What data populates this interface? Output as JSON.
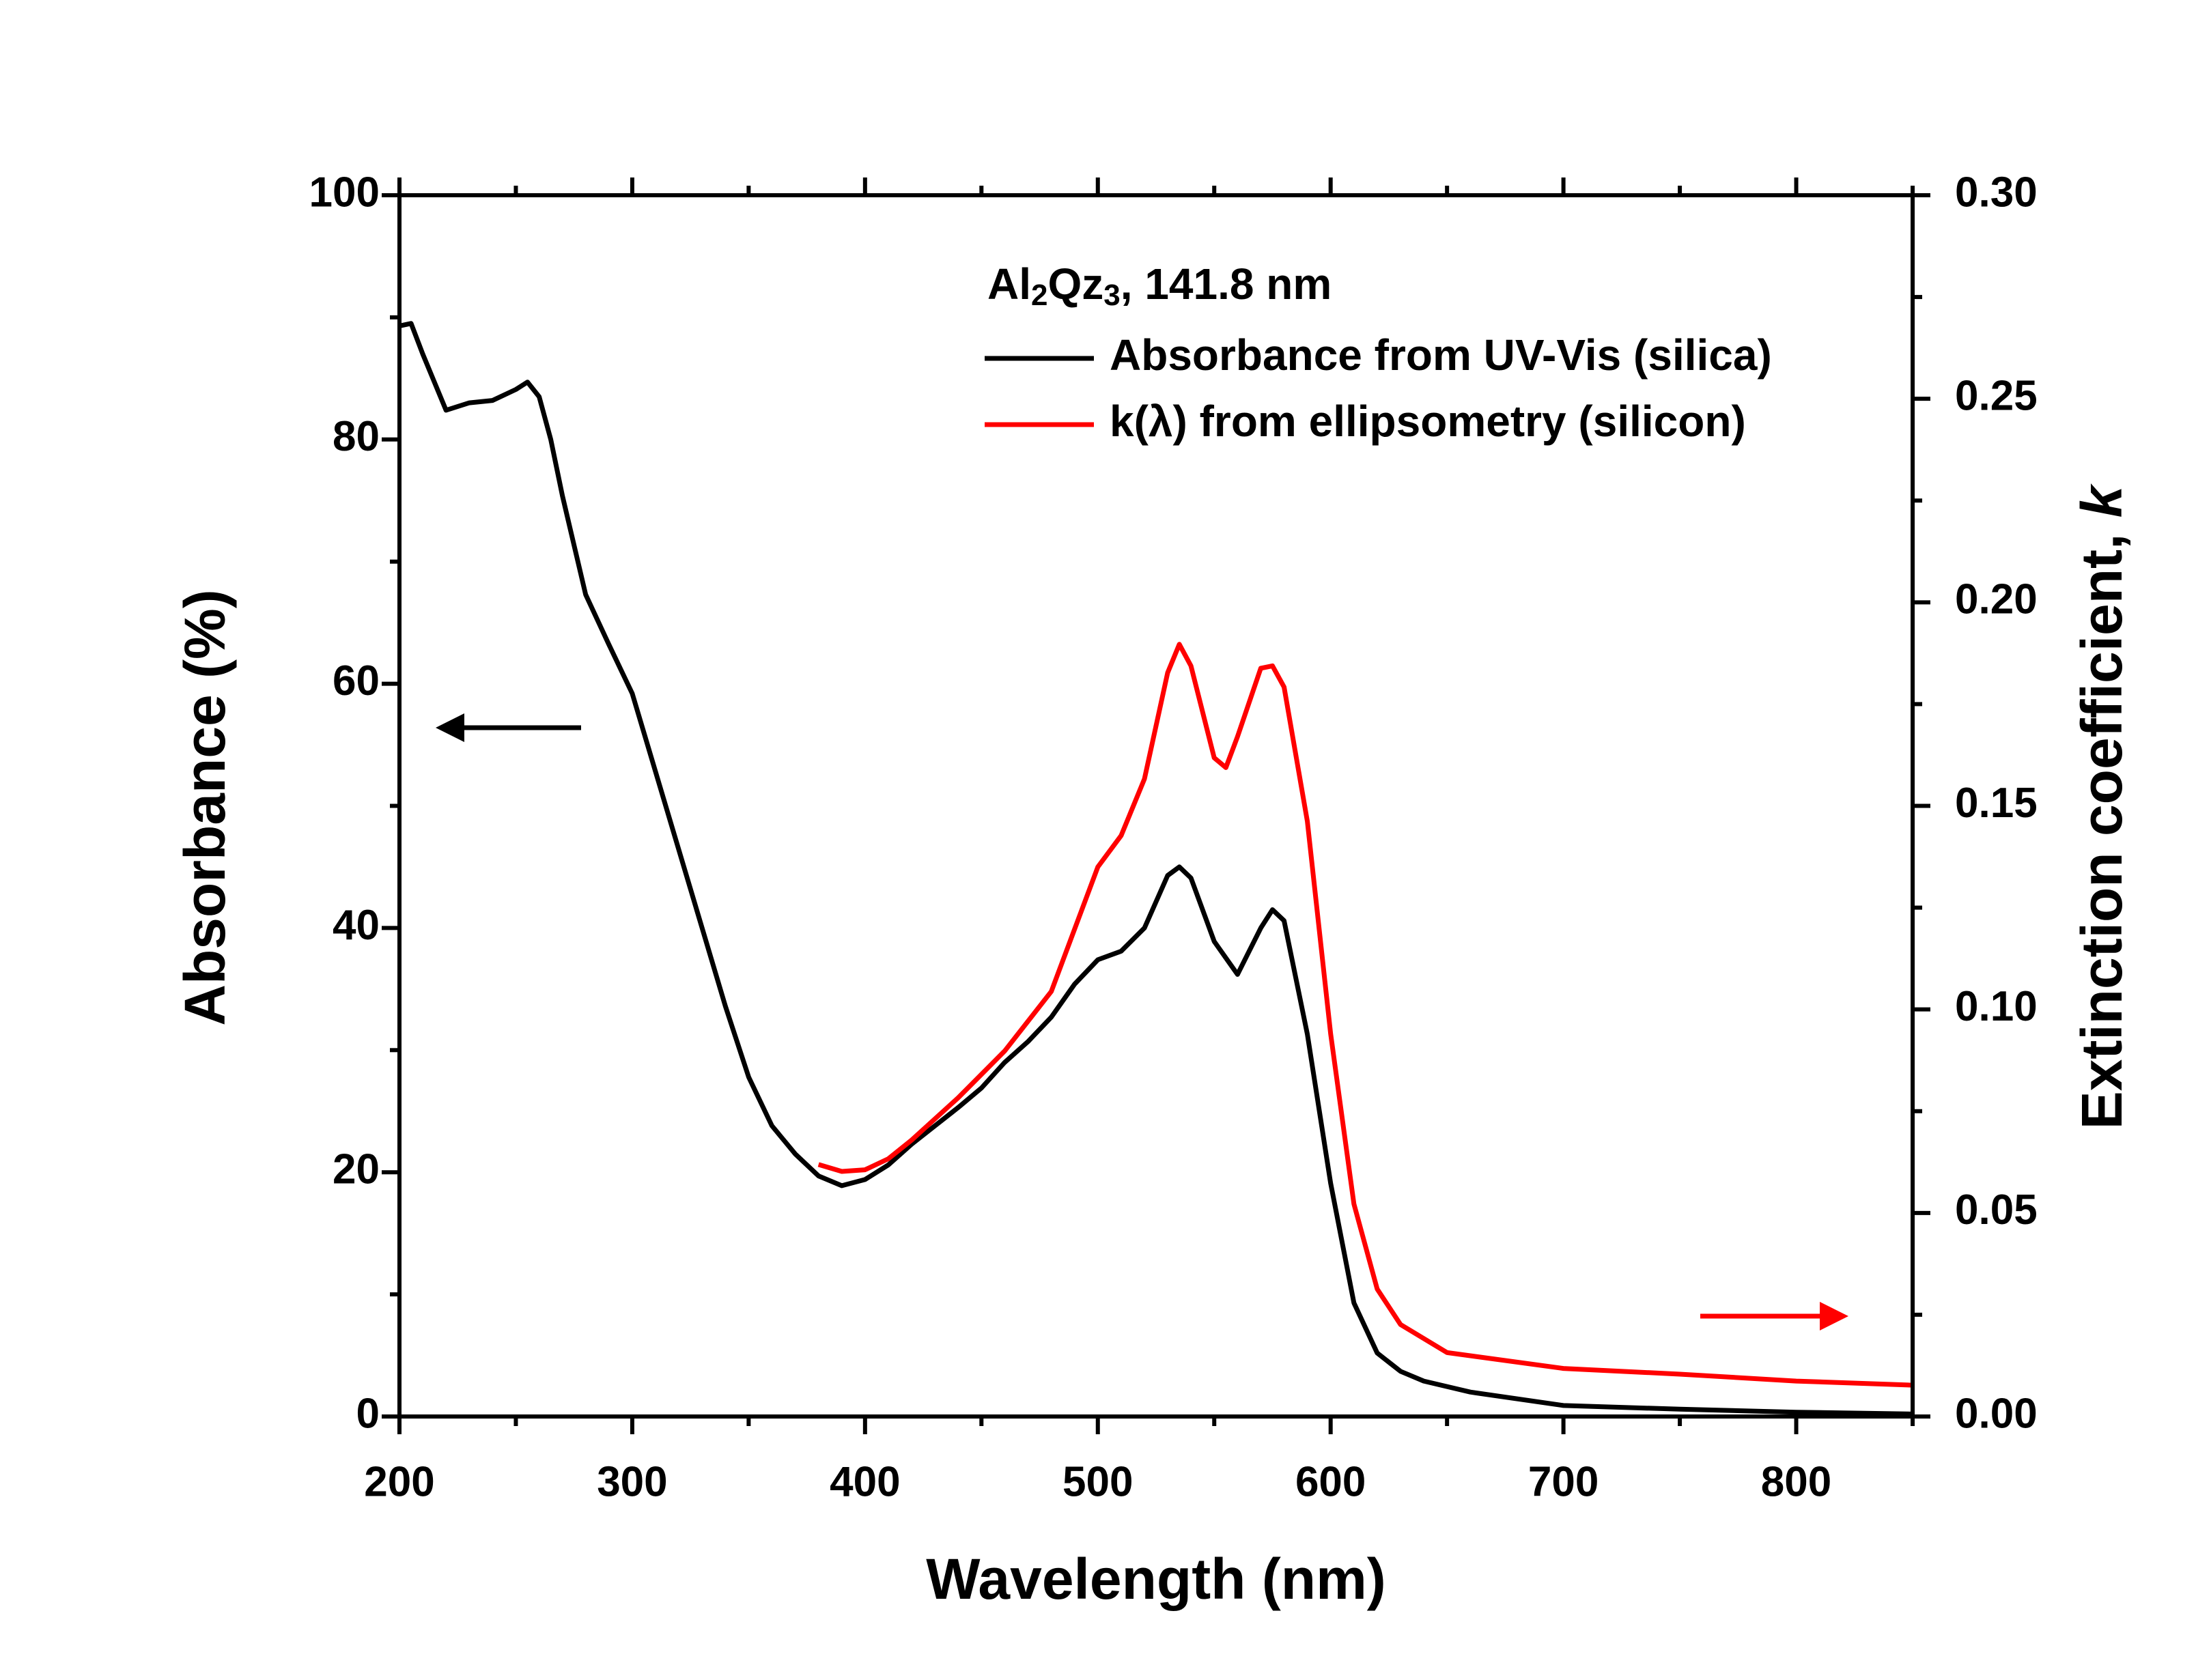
{
  "chart_data": {
    "type": "line",
    "xlabel": "Wavelength (nm)",
    "ylabel": "Absorbance (%)",
    "y2label_parts": [
      "Extinction coefficient, ",
      "k"
    ],
    "legend_title_parts": [
      "Al",
      "2",
      "Qz",
      "3",
      ", 141.8 nm"
    ],
    "xlim": [
      200,
      850
    ],
    "xticks": [
      200,
      300,
      400,
      500,
      600,
      700,
      800
    ],
    "xminorticks": [
      250,
      350,
      450,
      550,
      650,
      750,
      850
    ],
    "ylim": [
      0,
      100
    ],
    "yticks": [
      0,
      20,
      40,
      60,
      80,
      100
    ],
    "yminorticks": [
      10,
      30,
      50,
      70,
      90
    ],
    "y2lim": [
      0,
      0.3
    ],
    "y2ticks": [
      {
        "value": 0,
        "label": "0.00"
      },
      {
        "value": 0.05,
        "label": "0.05"
      },
      {
        "value": 0.1,
        "label": "0.10"
      },
      {
        "value": 0.15,
        "label": "0.15"
      },
      {
        "value": 0.2,
        "label": "0.20"
      },
      {
        "value": 0.25,
        "label": "0.25"
      },
      {
        "value": 0.3,
        "label": "0.30"
      }
    ],
    "y2minorticks": [
      0.025,
      0.075,
      0.125,
      0.175,
      0.225,
      0.275
    ],
    "series": [
      {
        "name": "Absorbance from UV-Vis (silica)",
        "color": "#000000",
        "axis": "y",
        "x": [
          200,
          205,
          210,
          220,
          230,
          240,
          250,
          255,
          260,
          265,
          270,
          280,
          290,
          300,
          310,
          320,
          330,
          340,
          350,
          360,
          370,
          380,
          390,
          400,
          410,
          420,
          430,
          440,
          450,
          460,
          470,
          480,
          490,
          500,
          510,
          520,
          530,
          535,
          540,
          550,
          560,
          570,
          575,
          580,
          590,
          600,
          610,
          620,
          630,
          640,
          660,
          700,
          750,
          800,
          850
        ],
        "values": [
          89.3,
          89.5,
          87,
          82.4,
          83,
          83.2,
          84.1,
          84.7,
          83.5,
          80,
          75.4,
          67.3,
          63.2,
          59.2,
          52.8,
          46.4,
          40,
          33.6,
          27.8,
          23.8,
          21.5,
          19.7,
          18.9,
          19.4,
          20.6,
          22.3,
          23.8,
          25.3,
          26.9,
          29,
          30.7,
          32.7,
          35.4,
          37.4,
          38.1,
          40,
          44.3,
          45,
          44.1,
          38.9,
          36.2,
          40,
          41.5,
          40.6,
          31.3,
          19.1,
          9.3,
          5.2,
          3.7,
          2.9,
          2,
          0.9,
          0.6,
          0.35,
          0.2
        ]
      },
      {
        "name": "k(λ) from ellipsometry (silicon)",
        "color": "#ff0000",
        "axis": "y2",
        "x": [
          380,
          390,
          400,
          410,
          420,
          440,
          460,
          480,
          500,
          510,
          520,
          530,
          535,
          540,
          550,
          555,
          560,
          570,
          575,
          580,
          590,
          600,
          610,
          620,
          630,
          650,
          700,
          750,
          800,
          850
        ],
        "values": [
          0.0619,
          0.0602,
          0.0606,
          0.0633,
          0.0679,
          0.0783,
          0.0898,
          0.1044,
          0.135,
          0.1427,
          0.1566,
          0.1827,
          0.1897,
          0.1844,
          0.1618,
          0.1594,
          0.167,
          0.1838,
          0.1844,
          0.1792,
          0.1462,
          0.094,
          0.0522,
          0.0313,
          0.0226,
          0.0157,
          0.0118,
          0.0104,
          0.0087,
          0.0077
        ]
      }
    ]
  }
}
